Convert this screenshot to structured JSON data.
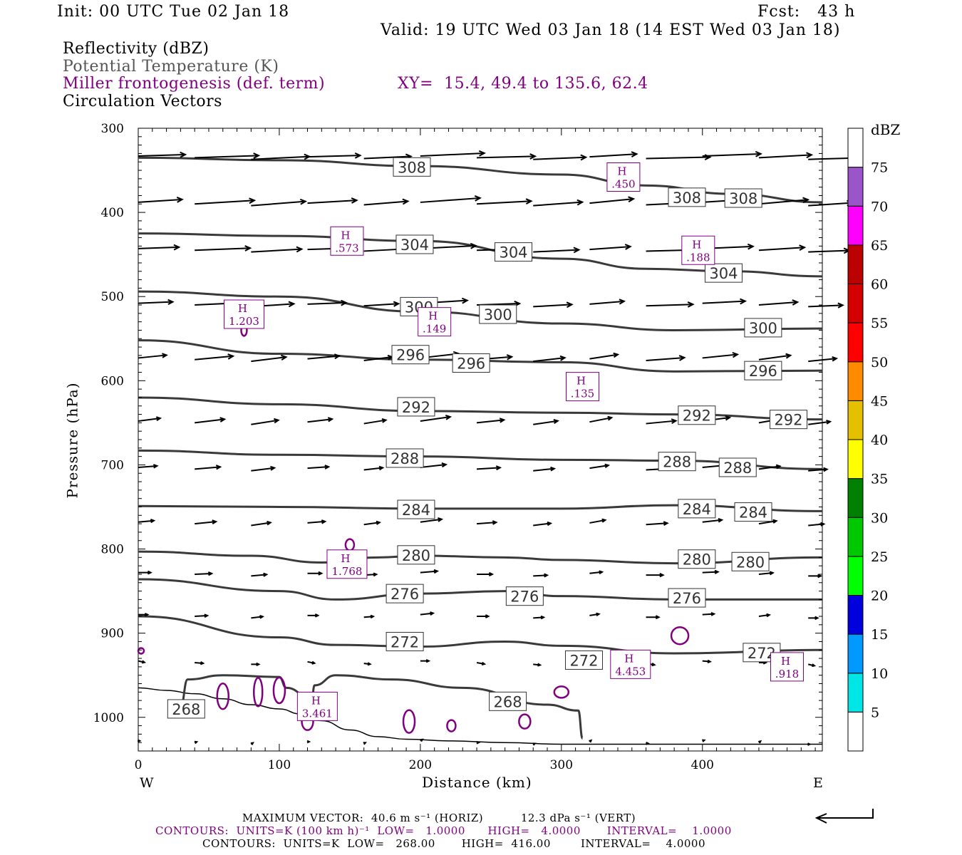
{
  "header": {
    "init": "Init: 00 UTC Tue 02 Jan 18",
    "fcst": "Fcst:   43 h",
    "valid": "Valid: 19 UTC Wed 03 Jan 18 (14 EST Wed 03 Jan 18)"
  },
  "titles": {
    "line1": "Reflectivity (dBZ)",
    "line2": "Potential Temperature (K)",
    "line3": "Miller frontogenesis (def. term)",
    "xy": "XY=  15.4, 49.4 to 135.6, 62.4",
    "line4": "Circulation Vectors"
  },
  "colors": {
    "theta": "#3a3a3a",
    "fronto": "#800080",
    "vector": "#000000",
    "terrain": "#000000"
  },
  "chart_data": {
    "type": "cross-section",
    "xlabel": "Distance (km)",
    "ylabel": "Pressure (hPa)",
    "xlim": [
      0,
      485
    ],
    "ylim": [
      1040,
      300
    ],
    "x_ticks": [
      0,
      100,
      200,
      300,
      400
    ],
    "y_ticks": [
      300,
      400,
      500,
      600,
      700,
      800,
      900,
      1000
    ],
    "west_label": "W",
    "east_label": "E",
    "colorbar": {
      "unit": "dBZ",
      "levels": [
        5,
        10,
        15,
        20,
        25,
        30,
        35,
        40,
        45,
        50,
        55,
        60,
        65,
        70,
        75
      ],
      "colors": [
        "#ffffff",
        "#00e5e5",
        "#0099ff",
        "#0000dd",
        "#00ff00",
        "#00c800",
        "#008000",
        "#ffff00",
        "#e5c000",
        "#ff8c00",
        "#ff0000",
        "#d40000",
        "#bb0000",
        "#ff00ff",
        "#9955c9",
        "#ffffff"
      ]
    },
    "theta_contours": [
      {
        "level": 308,
        "pts": [
          [
            0,
            335
          ],
          [
            100,
            338
          ],
          [
            200,
            345
          ],
          [
            300,
            355
          ],
          [
            360,
            368
          ],
          [
            420,
            378
          ],
          [
            485,
            388
          ]
        ]
      },
      {
        "level": 304,
        "pts": [
          [
            0,
            425
          ],
          [
            100,
            428
          ],
          [
            200,
            434
          ],
          [
            300,
            455
          ],
          [
            360,
            467
          ],
          [
            420,
            470
          ],
          [
            485,
            476
          ]
        ]
      },
      {
        "level": 300,
        "pts": [
          [
            0,
            494
          ],
          [
            100,
            500
          ],
          [
            200,
            518
          ],
          [
            300,
            532
          ],
          [
            380,
            540
          ],
          [
            485,
            538
          ]
        ]
      },
      {
        "level": 296,
        "pts": [
          [
            0,
            552
          ],
          [
            100,
            568
          ],
          [
            200,
            575
          ],
          [
            300,
            578
          ],
          [
            380,
            589
          ],
          [
            485,
            588
          ]
        ]
      },
      {
        "level": 292,
        "pts": [
          [
            0,
            620
          ],
          [
            100,
            628
          ],
          [
            200,
            636
          ],
          [
            300,
            638
          ],
          [
            380,
            640
          ],
          [
            485,
            646
          ]
        ]
      },
      {
        "level": 288,
        "pts": [
          [
            0,
            683
          ],
          [
            100,
            688
          ],
          [
            200,
            690
          ],
          [
            300,
            694
          ],
          [
            380,
            695
          ],
          [
            485,
            705
          ]
        ]
      },
      {
        "level": 284,
        "pts": [
          [
            0,
            749
          ],
          [
            100,
            750
          ],
          [
            200,
            752
          ],
          [
            300,
            752
          ],
          [
            380,
            748
          ],
          [
            485,
            755
          ]
        ]
      },
      {
        "level": 280,
        "pts": [
          [
            0,
            803
          ],
          [
            80,
            808
          ],
          [
            130,
            816
          ],
          [
            170,
            810
          ],
          [
            200,
            808
          ],
          [
            260,
            810
          ],
          [
            300,
            813
          ],
          [
            380,
            817
          ],
          [
            485,
            810
          ]
        ]
      },
      {
        "level": 276,
        "pts": [
          [
            0,
            836
          ],
          [
            100,
            850
          ],
          [
            140,
            860
          ],
          [
            200,
            853
          ],
          [
            260,
            850
          ],
          [
            300,
            856
          ],
          [
            380,
            860
          ],
          [
            485,
            860
          ]
        ]
      },
      {
        "level": 272,
        "pts": [
          [
            0,
            880
          ],
          [
            100,
            905
          ],
          [
            140,
            914
          ],
          [
            200,
            916
          ],
          [
            260,
            910
          ],
          [
            300,
            915
          ],
          [
            380,
            924
          ],
          [
            485,
            920
          ]
        ]
      },
      {
        "level": 300,
        "pts": [
          [
            0,
            1
          ],
          [
            0,
            1
          ]
        ]
      }
    ],
    "theta_labels": [
      {
        "text": "308",
        "x": 194,
        "y": 346
      },
      {
        "text": "308",
        "x": 389,
        "y": 382
      },
      {
        "text": "308",
        "x": 429,
        "y": 383
      },
      {
        "text": "304",
        "x": 196,
        "y": 438
      },
      {
        "text": "304",
        "x": 266,
        "y": 447
      },
      {
        "text": "304",
        "x": 415,
        "y": 472
      },
      {
        "text": "300",
        "x": 199,
        "y": 512
      },
      {
        "text": "300",
        "x": 255,
        "y": 521
      },
      {
        "text": "300",
        "x": 443,
        "y": 537
      },
      {
        "text": "296",
        "x": 193,
        "y": 569
      },
      {
        "text": "296",
        "x": 236,
        "y": 579
      },
      {
        "text": "296",
        "x": 443,
        "y": 588
      },
      {
        "text": "292",
        "x": 197,
        "y": 631
      },
      {
        "text": "292",
        "x": 396,
        "y": 641
      },
      {
        "text": "292",
        "x": 461,
        "y": 646
      },
      {
        "text": "288",
        "x": 189,
        "y": 692
      },
      {
        "text": "288",
        "x": 382,
        "y": 696
      },
      {
        "text": "288",
        "x": 425,
        "y": 703
      },
      {
        "text": "284",
        "x": 197,
        "y": 753
      },
      {
        "text": "284",
        "x": 396,
        "y": 752
      },
      {
        "text": "284",
        "x": 436,
        "y": 756
      },
      {
        "text": "280",
        "x": 197,
        "y": 807
      },
      {
        "text": "280",
        "x": 396,
        "y": 812
      },
      {
        "text": "280",
        "x": 434,
        "y": 815
      },
      {
        "text": "276",
        "x": 189,
        "y": 853
      },
      {
        "text": "276",
        "x": 274,
        "y": 856
      },
      {
        "text": "276",
        "x": 389,
        "y": 858
      },
      {
        "text": "272",
        "x": 189,
        "y": 910
      },
      {
        "text": "272",
        "x": 316,
        "y": 932
      },
      {
        "text": "272",
        "x": 442,
        "y": 923
      },
      {
        "text": "268",
        "x": 262,
        "y": 981
      },
      {
        "text": "268",
        "x": 34,
        "y": 990
      }
    ],
    "fronto_maxima": [
      {
        "label": "H",
        "value": ".450",
        "x": 344,
        "y": 358
      },
      {
        "label": "H",
        "value": ".573",
        "x": 148,
        "y": 434
      },
      {
        "label": "H",
        "value": ".188",
        "x": 397,
        "y": 445
      },
      {
        "label": "H",
        "value": "1.203",
        "x": 75,
        "y": 521
      },
      {
        "label": "H",
        "value": ".149",
        "x": 210,
        "y": 530
      },
      {
        "label": "H",
        "value": ".135",
        "x": 315,
        "y": 607
      },
      {
        "label": "H",
        "value": "1.768",
        "x": 148,
        "y": 818
      },
      {
        "label": "H",
        "value": "4.453",
        "x": 349,
        "y": 937
      },
      {
        "label": "H",
        "value": ".918",
        "x": 460,
        "y": 940
      },
      {
        "label": "H",
        "value": "3.461",
        "x": 127,
        "y": 987
      }
    ],
    "maximum_vector_horiz": "40.6 m s-1 (HORIZ)",
    "maximum_vector_vert": "12.3 dPa s-1 (VERT)"
  },
  "footer": {
    "max_vector": "MAXIMUM VECTOR:  40.6 m s⁻¹ (HORIZ)          12.3 dPa s⁻¹ (VERT)",
    "contours_fronto": "CONTOURS:  UNITS=K (100 km h)⁻¹  LOW=   1.0000      HIGH=   4.0000       INTERVAL=    1.0000",
    "contours_theta": "CONTOURS:  UNITS=K  LOW=   268.00       HIGH=  416.00        INTERVAL=    4.0000"
  }
}
